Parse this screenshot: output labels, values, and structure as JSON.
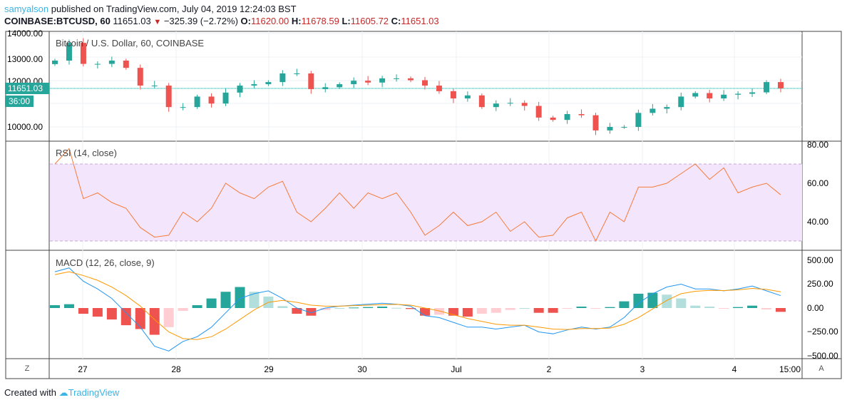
{
  "header": {
    "author": "samyalson",
    "published": "published on TradingView.com, July 04, 2019 12:24:03 BST",
    "symbol": "COINBASE:BTCUSD, 60",
    "last": "11651.03",
    "change": "−325.39 (−2.72%)",
    "o_label": "O:",
    "o": "11620.00",
    "h_label": "H:",
    "h": "11678.59",
    "l_label": "L:",
    "l": "11605.72",
    "c_label": "C:",
    "c": "11651.03"
  },
  "main": {
    "title": "Bitcoin / U.S. Dollar, 60, COINBASE",
    "price_ticks": [
      "14000.00",
      "13000.00",
      "12000.00",
      "10000.00"
    ],
    "price_label": "11651.03",
    "countdown": "36:00"
  },
  "rsi": {
    "title": "RSI (14, close)",
    "ticks": [
      "80.00",
      "60.00",
      "40.00"
    ]
  },
  "macd": {
    "title": "MACD (12, 26, close, 9)",
    "ticks": [
      "500.00",
      "250.00",
      "0.00",
      "−250.00",
      "−500.00"
    ]
  },
  "time_axis": [
    "27",
    "28",
    "29",
    "30",
    "Jul",
    "2",
    "3",
    "4",
    "15:00"
  ],
  "buttons": {
    "z": "Z",
    "a": "A"
  },
  "footer": {
    "created": "Created with",
    "brand": "TradingView"
  },
  "colors": {
    "up": "#26a69a",
    "down": "#ef5350",
    "rsi": "#f57c3a",
    "macd": "#2196f3",
    "signal": "#ff9800",
    "band": "#f3e5fc"
  },
  "chart_data": {
    "type": "candlestick",
    "closes": [
      12840,
      13600,
      12700,
      12700,
      12840,
      12530,
      11770,
      11770,
      10850,
      10850,
      11300,
      11000,
      11470,
      11770,
      11830,
      11920,
      12290,
      12290,
      11620,
      11700,
      11830,
      11980,
      11900,
      12080,
      12080,
      12000,
      11770,
      11530,
      11220,
      11350,
      10850,
      11000,
      11030,
      10900,
      10400,
      10300,
      10550,
      10500,
      9850,
      10000,
      10000,
      10600,
      10780,
      10850,
      11300,
      11450,
      11220,
      11380,
      11420,
      11480,
      11920,
      11651
    ],
    "rsi": [
      70,
      78,
      52,
      55,
      50,
      47,
      37,
      32,
      33,
      45,
      40,
      47,
      60,
      55,
      52,
      58,
      61,
      45,
      40,
      47,
      55,
      47,
      55,
      52,
      55,
      45,
      33,
      38,
      45,
      38,
      40,
      45,
      35,
      40,
      32,
      33,
      42,
      45,
      30,
      45,
      40,
      58,
      58,
      60,
      65,
      70,
      62,
      68,
      55,
      58,
      60,
      54
    ],
    "rsi_band": [
      30,
      70
    ],
    "macd": [
      380,
      420,
      280,
      200,
      100,
      -50,
      -200,
      -400,
      -450,
      -350,
      -300,
      -200,
      -50,
      100,
      150,
      180,
      100,
      0,
      -50,
      0,
      20,
      30,
      40,
      50,
      40,
      20,
      -80,
      -100,
      -150,
      -200,
      -200,
      -220,
      -200,
      -180,
      -250,
      -270,
      -230,
      -200,
      -220,
      -200,
      -100,
      50,
      150,
      220,
      250,
      200,
      200,
      180,
      200,
      230,
      180,
      130
    ],
    "signal": [
      350,
      380,
      340,
      290,
      220,
      130,
      20,
      -120,
      -250,
      -320,
      -330,
      -300,
      -220,
      -120,
      -20,
      60,
      80,
      60,
      30,
      20,
      20,
      25,
      30,
      35,
      38,
      30,
      0,
      -30,
      -70,
      -110,
      -140,
      -170,
      -180,
      -180,
      -200,
      -220,
      -225,
      -215,
      -215,
      -210,
      -170,
      -100,
      -10,
      80,
      150,
      175,
      185,
      183,
      190,
      205,
      195,
      170
    ],
    "price_range": [
      9500,
      14000
    ],
    "rsi_range": [
      20,
      85
    ],
    "macd_range": [
      -520,
      520
    ],
    "grid": true
  }
}
